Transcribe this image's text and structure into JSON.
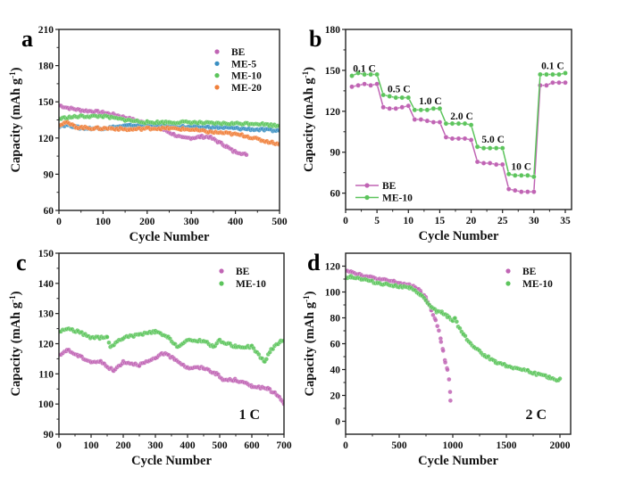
{
  "colors": {
    "BE": "#c064b4",
    "ME-5": "#3a8fc2",
    "ME-10": "#5cc45c",
    "ME-20": "#f07f3a",
    "BE_line": "#b85aae",
    "ME-10_line": "#4fbf4f"
  },
  "chart_data": [
    {
      "id": "a",
      "panel_label": "a",
      "type": "scatter",
      "title": "",
      "xlabel": "Cycle Number",
      "ylabel": "Capacity (mAh g-1)",
      "xlim": [
        0,
        500
      ],
      "ylim": [
        60,
        210
      ],
      "xticks": [
        0,
        100,
        200,
        300,
        400,
        500
      ],
      "yticks": [
        60,
        90,
        120,
        150,
        180,
        210
      ],
      "legend": [
        "BE",
        "ME-5",
        "ME-10",
        "ME-20"
      ],
      "legend_position": "top-right",
      "series": [
        {
          "name": "BE",
          "x": [
            1,
            20,
            50,
            80,
            100,
            130,
            160,
            200,
            230,
            260,
            280,
            300,
            320,
            340,
            360,
            380,
            395,
            410,
            425
          ],
          "y": [
            147,
            145,
            143,
            142,
            141,
            139,
            136,
            132,
            128,
            123,
            120,
            120,
            121,
            121,
            117,
            113,
            109,
            108,
            106
          ]
        },
        {
          "name": "ME-5",
          "x": [
            1,
            20,
            50,
            100,
            150,
            200,
            250,
            300,
            350,
            400,
            450,
            500
          ],
          "y": [
            130,
            131,
            128,
            128,
            130,
            131,
            130,
            129,
            129,
            128,
            127,
            126
          ]
        },
        {
          "name": "ME-10",
          "x": [
            1,
            20,
            50,
            100,
            150,
            200,
            250,
            300,
            350,
            400,
            450,
            500
          ],
          "y": [
            136,
            137,
            138,
            138,
            135,
            133,
            133,
            133,
            132,
            132,
            132,
            130
          ]
        },
        {
          "name": "ME-20",
          "x": [
            1,
            15,
            40,
            80,
            120,
            160,
            200,
            250,
            300,
            340,
            380,
            420,
            460,
            500
          ],
          "y": [
            131,
            133,
            129,
            128,
            128,
            127,
            128,
            128,
            127,
            125,
            124,
            122,
            118,
            115
          ]
        }
      ]
    },
    {
      "id": "b",
      "panel_label": "b",
      "type": "line",
      "title": "",
      "xlabel": "Cycle Number",
      "ylabel": "Capacity (mAh g-1)",
      "xlim": [
        0,
        36
      ],
      "ylim": [
        48,
        180
      ],
      "xticks": [
        0,
        5,
        10,
        15,
        20,
        25,
        30,
        35
      ],
      "yticks": [
        60,
        90,
        120,
        150,
        180
      ],
      "legend": [
        "BE",
        "ME-10"
      ],
      "legend_position": "bottom-left",
      "annotations": [
        {
          "text": "0.1 C",
          "x": 3,
          "y": 149
        },
        {
          "text": "0.5 C",
          "x": 8.5,
          "y": 134
        },
        {
          "text": "1.0 C",
          "x": 13.5,
          "y": 125
        },
        {
          "text": "2.0 C",
          "x": 18.5,
          "y": 114
        },
        {
          "text": "5.0 C",
          "x": 23.5,
          "y": 97
        },
        {
          "text": "10 C",
          "x": 28,
          "y": 77
        },
        {
          "text": "0.1 C",
          "x": 33,
          "y": 151
        }
      ],
      "x": [
        1,
        2,
        3,
        4,
        5,
        6,
        7,
        8,
        9,
        10,
        11,
        12,
        13,
        14,
        15,
        16,
        17,
        18,
        19,
        20,
        21,
        22,
        23,
        24,
        25,
        26,
        27,
        28,
        29,
        30,
        31,
        32,
        33,
        34,
        35
      ],
      "series": [
        {
          "name": "BE",
          "values": [
            138,
            139,
            140,
            139,
            140,
            123,
            122,
            122,
            123,
            124,
            114,
            114,
            113,
            112,
            112,
            101,
            100,
            100,
            100,
            99,
            83,
            82,
            82,
            81,
            81,
            63,
            62,
            61,
            61,
            61,
            139,
            139,
            141,
            141,
            141
          ]
        },
        {
          "name": "ME-10",
          "values": [
            146,
            148,
            147,
            147,
            147,
            132,
            131,
            130,
            130,
            130,
            121,
            121,
            121,
            122,
            122,
            111,
            111,
            111,
            111,
            110,
            94,
            93,
            93,
            93,
            93,
            74,
            73,
            73,
            73,
            72,
            147,
            147,
            147,
            147,
            148
          ]
        }
      ]
    },
    {
      "id": "c",
      "panel_label": "c",
      "type": "scatter",
      "title": "",
      "xlabel": "Cycle Number",
      "ylabel": "Capacity (mAh g-1)",
      "xlim": [
        0,
        700
      ],
      "ylim": [
        90,
        150
      ],
      "xticks": [
        0,
        100,
        200,
        300,
        400,
        500,
        600,
        700
      ],
      "yticks": [
        90,
        100,
        110,
        120,
        130,
        140,
        150
      ],
      "legend": [
        "BE",
        "ME-10"
      ],
      "legend_position": "top-right",
      "annotation": "1 C",
      "series": [
        {
          "name": "BE",
          "x": [
            1,
            25,
            60,
            100,
            130,
            170,
            200,
            250,
            300,
            320,
            360,
            400,
            450,
            490,
            510,
            550,
            600,
            650,
            680,
            700
          ],
          "y": [
            116,
            118,
            116,
            114,
            114,
            111,
            114,
            113,
            115,
            117,
            115,
            112,
            112,
            110,
            108,
            108,
            106,
            105,
            103,
            100
          ]
        },
        {
          "name": "ME-10",
          "x": [
            1,
            25,
            60,
            100,
            150,
            160,
            200,
            250,
            300,
            340,
            370,
            400,
            450,
            480,
            500,
            550,
            600,
            640,
            660,
            690,
            700
          ],
          "y": [
            124,
            125,
            124,
            122,
            122,
            119,
            122,
            123,
            124,
            122,
            119,
            121,
            121,
            119,
            121,
            119,
            119,
            114,
            118,
            121,
            121
          ]
        }
      ]
    },
    {
      "id": "d",
      "panel_label": "d",
      "type": "scatter",
      "title": "",
      "xlabel": "Cycle Number",
      "ylabel": "Capacity (mAh g-1)",
      "xlim": [
        0,
        2100
      ],
      "ylim": [
        -10,
        130
      ],
      "xticks": [
        0,
        500,
        1000,
        1500,
        2000
      ],
      "yticks": [
        0,
        20,
        40,
        60,
        80,
        100,
        120
      ],
      "legend": [
        "BE",
        "ME-10"
      ],
      "legend_position": "top-right",
      "annotation": "2 C",
      "series": [
        {
          "name": "BE",
          "x": [
            1,
            50,
            150,
            300,
            450,
            600,
            650,
            700,
            750,
            800,
            840,
            870,
            890,
            910,
            930,
            950,
            965,
            975,
            978
          ],
          "y": [
            117,
            116,
            113,
            110,
            108,
            105,
            104,
            100,
            95,
            86,
            78,
            70,
            62,
            55,
            45,
            40,
            32,
            22,
            16
          ]
        },
        {
          "name": "ME-10",
          "x": [
            1,
            50,
            150,
            300,
            450,
            600,
            700,
            800,
            850,
            900,
            950,
            1000,
            1020,
            1050,
            1100,
            1200,
            1300,
            1400,
            1500,
            1600,
            1700,
            1800,
            1900,
            1970,
            2000
          ],
          "y": [
            111,
            112,
            110,
            107,
            105,
            103,
            98,
            88,
            85,
            84,
            81,
            78,
            80,
            74,
            67,
            57,
            51,
            46,
            43,
            41,
            39,
            36,
            34,
            31,
            33
          ]
        }
      ]
    }
  ]
}
